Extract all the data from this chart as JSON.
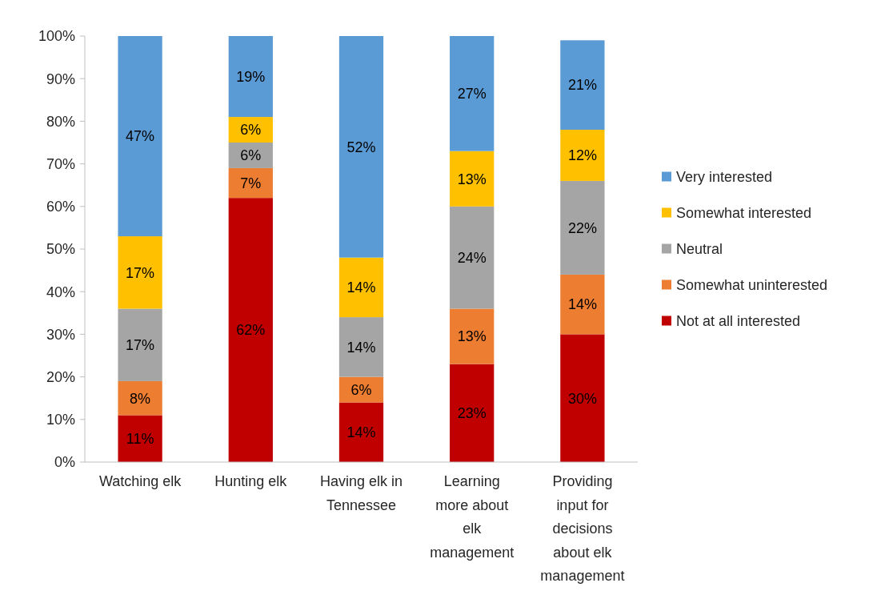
{
  "chart_data": {
    "type": "bar",
    "stacked": true,
    "categories": [
      "Watching elk",
      "Hunting elk",
      "Having elk in Tennessee",
      "Learning more about elk management",
      "Providing input for decisions about elk management"
    ],
    "series": [
      {
        "name": "Not at all interested",
        "color": "#c00000",
        "values": [
          11,
          62,
          14,
          23,
          30
        ],
        "value_labels": [
          "11%",
          "62%",
          "14%",
          "23%",
          "30%"
        ]
      },
      {
        "name": "Somewhat uninterested",
        "color": "#ed7d31",
        "values": [
          8,
          7,
          6,
          13,
          14
        ],
        "value_labels": [
          "8%",
          "7%",
          "6%",
          "13%",
          "14%"
        ]
      },
      {
        "name": "Neutral",
        "color": "#a5a5a5",
        "values": [
          17,
          6,
          14,
          24,
          22
        ],
        "value_labels": [
          "17%",
          "6%",
          "14%",
          "24%",
          "22%"
        ]
      },
      {
        "name": "Somewhat interested",
        "color": "#ffc000",
        "values": [
          17,
          6,
          14,
          13,
          12
        ],
        "value_labels": [
          "17%",
          "6%",
          "14%",
          "13%",
          "12%"
        ]
      },
      {
        "name": "Very interested",
        "color": "#5b9bd5",
        "values": [
          47,
          19,
          52,
          27,
          21
        ],
        "value_labels": [
          "47%",
          "19%",
          "52%",
          "27%",
          "21%"
        ]
      }
    ],
    "ylim": [
      0,
      100
    ],
    "yticks": [
      {
        "value": 0,
        "label": "0%"
      },
      {
        "value": 10,
        "label": "10%"
      },
      {
        "value": 20,
        "label": "20%"
      },
      {
        "value": 30,
        "label": "30%"
      },
      {
        "value": 40,
        "label": "40%"
      },
      {
        "value": 50,
        "label": "50%"
      },
      {
        "value": 60,
        "label": "60%"
      },
      {
        "value": 70,
        "label": "70%"
      },
      {
        "value": 80,
        "label": "80%"
      },
      {
        "value": 90,
        "label": "90%"
      },
      {
        "value": 100,
        "label": "100%"
      }
    ],
    "grid": false,
    "legend": "right"
  }
}
